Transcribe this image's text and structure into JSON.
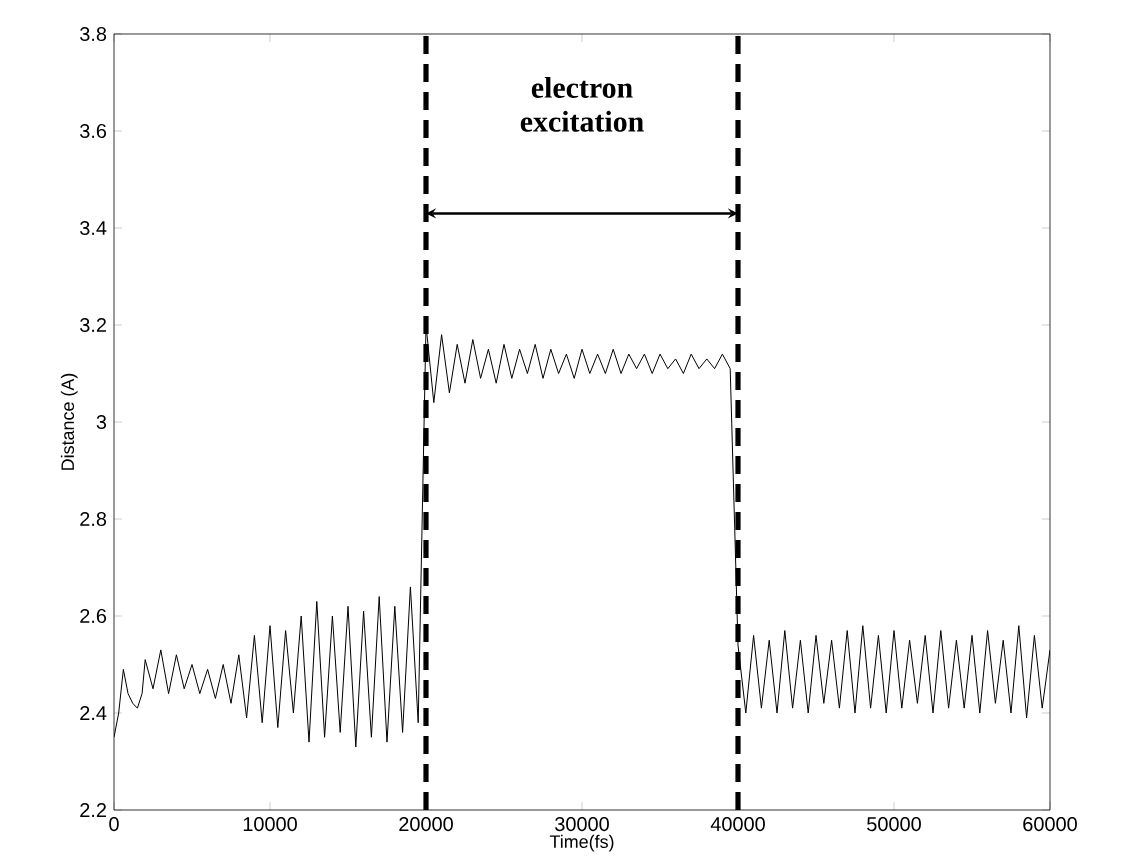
{
  "chart_data": {
    "type": "line",
    "xlabel": "Time(fs)",
    "ylabel": "Distance (A)",
    "xlim": [
      0,
      60000
    ],
    "ylim": [
      2.2,
      3.8
    ],
    "xticks": [
      0,
      10000,
      20000,
      30000,
      40000,
      50000,
      60000
    ],
    "yticks": [
      2.2,
      2.4,
      2.6,
      2.8,
      3,
      3.2,
      3.4,
      3.6,
      3.8
    ],
    "grid": false,
    "annotations": [
      "electron excitation"
    ],
    "ref_lines": [
      {
        "axis": "x",
        "value": 20000,
        "color": "#000000",
        "line_style": "dashed"
      },
      {
        "axis": "x",
        "value": 40000,
        "color": "#000000",
        "line_style": "dashed"
      }
    ],
    "series": [
      {
        "color": "#000000",
        "x": [
          0,
          300,
          600,
          900,
          1200,
          1500,
          1800,
          2000,
          2500,
          3000,
          3500,
          4000,
          4500,
          5000,
          5500,
          6000,
          6500,
          7000,
          7500,
          8000,
          8500,
          9000,
          9500,
          10000,
          10500,
          11000,
          11500,
          12000,
          12500,
          13000,
          13500,
          14000,
          14500,
          15000,
          15500,
          16000,
          16500,
          17000,
          17500,
          18000,
          18500,
          19000,
          19500,
          20000,
          20500,
          21000,
          21500,
          22000,
          22500,
          23000,
          23500,
          24000,
          24500,
          25000,
          25500,
          26000,
          26500,
          27000,
          27500,
          28000,
          28500,
          29000,
          29500,
          30000,
          30500,
          31000,
          31500,
          32000,
          32500,
          33000,
          33500,
          34000,
          34500,
          35000,
          35500,
          36000,
          36500,
          37000,
          37500,
          38000,
          38500,
          39000,
          39500,
          40000,
          40500,
          41000,
          41500,
          42000,
          42500,
          43000,
          43500,
          44000,
          44500,
          45000,
          45500,
          46000,
          46500,
          47000,
          47500,
          48000,
          48500,
          49000,
          49500,
          50000,
          50500,
          51000,
          51500,
          52000,
          52500,
          53000,
          53500,
          54000,
          54500,
          55000,
          55500,
          56000,
          56500,
          57000,
          57500,
          58000,
          58500,
          59000,
          59500,
          60000
        ],
        "values": [
          2.35,
          2.4,
          2.49,
          2.44,
          2.42,
          2.41,
          2.44,
          2.51,
          2.45,
          2.53,
          2.44,
          2.52,
          2.45,
          2.5,
          2.44,
          2.49,
          2.43,
          2.5,
          2.42,
          2.52,
          2.39,
          2.56,
          2.38,
          2.58,
          2.37,
          2.57,
          2.4,
          2.6,
          2.34,
          2.63,
          2.35,
          2.6,
          2.36,
          2.62,
          2.33,
          2.61,
          2.35,
          2.64,
          2.34,
          2.62,
          2.36,
          2.66,
          2.38,
          3.2,
          3.04,
          3.18,
          3.06,
          3.16,
          3.08,
          3.17,
          3.09,
          3.15,
          3.08,
          3.16,
          3.09,
          3.15,
          3.1,
          3.16,
          3.09,
          3.15,
          3.1,
          3.14,
          3.09,
          3.15,
          3.1,
          3.14,
          3.1,
          3.15,
          3.1,
          3.14,
          3.11,
          3.14,
          3.1,
          3.14,
          3.11,
          3.13,
          3.1,
          3.14,
          3.11,
          3.13,
          3.11,
          3.14,
          3.11,
          2.54,
          2.4,
          2.56,
          2.41,
          2.55,
          2.4,
          2.57,
          2.41,
          2.55,
          2.4,
          2.56,
          2.42,
          2.55,
          2.41,
          2.57,
          2.4,
          2.58,
          2.41,
          2.56,
          2.4,
          2.57,
          2.41,
          2.55,
          2.42,
          2.56,
          2.4,
          2.57,
          2.41,
          2.55,
          2.41,
          2.56,
          2.4,
          2.57,
          2.42,
          2.55,
          2.4,
          2.58,
          2.39,
          2.56,
          2.41,
          2.53
        ]
      }
    ]
  }
}
